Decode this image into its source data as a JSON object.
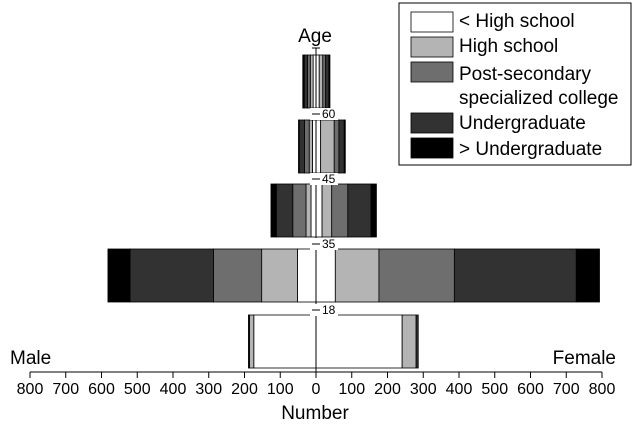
{
  "chart_data": {
    "type": "bar",
    "subtype": "population-pyramid",
    "title": "",
    "xlabel": "Number",
    "ylabel": "Age",
    "left_side_label": "Male",
    "right_side_label": "Female",
    "xlim": [
      -800,
      800
    ],
    "x_ticks": [
      -800,
      -700,
      -600,
      -500,
      -400,
      -300,
      -200,
      -100,
      0,
      100,
      200,
      300,
      400,
      500,
      600,
      700,
      800
    ],
    "x_tick_labels": [
      "800",
      "700",
      "600",
      "500",
      "400",
      "300",
      "200",
      "100",
      "0",
      "100",
      "200",
      "300",
      "400",
      "500",
      "600",
      "700",
      "800"
    ],
    "legend_position": "top-right",
    "grid": false,
    "categories_legend": [
      {
        "name": "< High school",
        "color": "#ffffff"
      },
      {
        "name": "High school",
        "color": "#b4b4b4"
      },
      {
        "name": "Post-secondary specialized college",
        "label_lines": [
          "Post-secondary",
          "specialized college"
        ],
        "color": "#6e6e6e"
      },
      {
        "name": "Undergraduate",
        "color": "#323232"
      },
      {
        "name": "> Undergraduate",
        "color": "#000000"
      }
    ],
    "age_boundaries": [
      "18",
      "35",
      "45",
      "60"
    ],
    "age_groups": [
      {
        "group": "under 18",
        "male": [
          174,
          12,
          0,
          3,
          0
        ],
        "female": [
          241,
          39,
          0,
          6,
          0
        ]
      },
      {
        "group": "18-35",
        "male": [
          52,
          100,
          135,
          233,
          62
        ],
        "female": [
          54,
          122,
          211,
          341,
          65
        ]
      },
      {
        "group": "35-45",
        "male": [
          14,
          14,
          37,
          46,
          15
        ],
        "female": [
          17,
          27,
          45,
          65,
          15
        ]
      },
      {
        "group": "45-60",
        "male": [
          10,
          9,
          13,
          15,
          2
        ],
        "female": [
          13,
          38,
          13,
          15,
          3
        ]
      },
      {
        "group": "60+",
        "male": [
          8,
          8,
          8,
          9,
          4
        ],
        "female": [
          9,
          10,
          8,
          9,
          3
        ]
      }
    ]
  }
}
